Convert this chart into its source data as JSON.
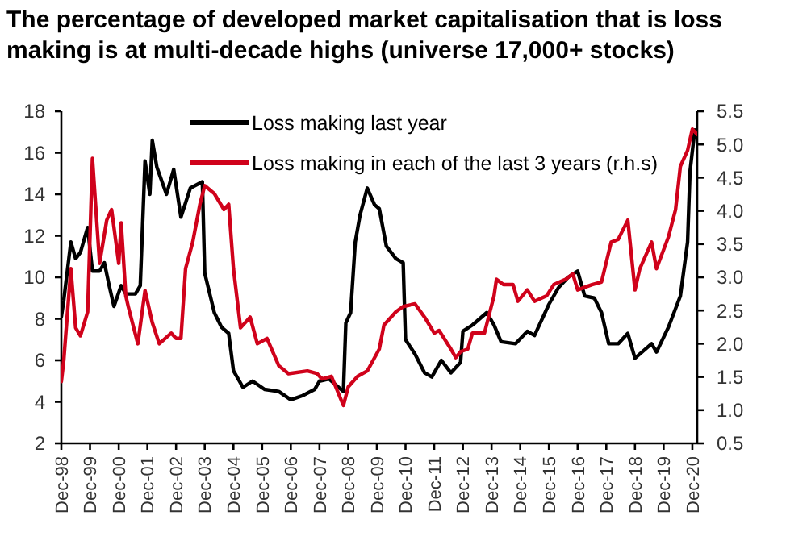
{
  "chart_data": {
    "type": "line",
    "title": "The percentage of developed market capitalisation that is loss making is at multi-decade highs (universe 17,000+ stocks)",
    "xlim": [
      "1998-12",
      "2021-02"
    ],
    "xticks": [
      {
        "value": "1998-12",
        "label": "Dec-98"
      },
      {
        "value": "1999-12",
        "label": "Dec-99"
      },
      {
        "value": "2000-12",
        "label": "Dec-00"
      },
      {
        "value": "2001-12",
        "label": "Dec-01"
      },
      {
        "value": "2002-12",
        "label": "Dec-02"
      },
      {
        "value": "2003-12",
        "label": "Dec-03"
      },
      {
        "value": "2004-12",
        "label": "Dec-04"
      },
      {
        "value": "2005-12",
        "label": "Dec-05"
      },
      {
        "value": "2006-12",
        "label": "Dec-06"
      },
      {
        "value": "2007-12",
        "label": "Dec-07"
      },
      {
        "value": "2008-12",
        "label": "Dec-08"
      },
      {
        "value": "2009-12",
        "label": "Dec-09"
      },
      {
        "value": "2010-12",
        "label": "Dec-10"
      },
      {
        "value": "2011-12",
        "label": "Dec-11"
      },
      {
        "value": "2012-12",
        "label": "Dec-12"
      },
      {
        "value": "2013-12",
        "label": "Dec-13"
      },
      {
        "value": "2014-12",
        "label": "Dec-14"
      },
      {
        "value": "2015-12",
        "label": "Dec-15"
      },
      {
        "value": "2016-12",
        "label": "Dec-16"
      },
      {
        "value": "2017-12",
        "label": "Dec-17"
      },
      {
        "value": "2018-12",
        "label": "Dec-18"
      },
      {
        "value": "2019-12",
        "label": "Dec-19"
      },
      {
        "value": "2020-12",
        "label": "Dec-20"
      }
    ],
    "ylim": [
      2,
      18
    ],
    "yticks": [
      2,
      4,
      6,
      8,
      10,
      12,
      14,
      16,
      18
    ],
    "y2lim": [
      0.5,
      5.5
    ],
    "y2ticks": [
      {
        "value": 0.5,
        "label": "0.5"
      },
      {
        "value": 1,
        "label": "1.0"
      },
      {
        "value": 1.5,
        "label": "1.5"
      },
      {
        "value": 2,
        "label": "2.0"
      },
      {
        "value": 2.5,
        "label": "2.5"
      },
      {
        "value": 3,
        "label": "3.0"
      },
      {
        "value": 3.5,
        "label": "3.5"
      },
      {
        "value": 4,
        "label": "4.0"
      },
      {
        "value": 4.5,
        "label": "4.5"
      },
      {
        "value": 5,
        "label": "5.0"
      },
      {
        "value": 5.5,
        "label": "5.5"
      }
    ],
    "legend": "top",
    "series": [
      {
        "name": "Loss making last year",
        "color": "#000000",
        "x": [
          "1998-12",
          "1999-01",
          "1999-04",
          "1999-06",
          "1999-08",
          "1999-11",
          "2000-01",
          "2000-04",
          "2000-06",
          "2000-08",
          "2000-10",
          "2001-01",
          "2001-03",
          "2001-07",
          "2001-09",
          "2001-11",
          "2002-01",
          "2002-02",
          "2002-04",
          "2002-08",
          "2002-11",
          "2003-02",
          "2003-06",
          "2003-11",
          "2003-12",
          "2004-04",
          "2004-07",
          "2004-10",
          "2004-12",
          "2005-04",
          "2005-08",
          "2006-01",
          "2006-07",
          "2006-12",
          "2007-05",
          "2007-10",
          "2007-12",
          "2008-04",
          "2008-10",
          "2008-11",
          "2009-01",
          "2009-03",
          "2009-05",
          "2009-08",
          "2009-11",
          "2010-01",
          "2010-04",
          "2010-08",
          "2010-11",
          "2010-12",
          "2011-04",
          "2011-08",
          "2011-11",
          "2012-03",
          "2012-07",
          "2012-11",
          "2012-12",
          "2013-04",
          "2013-10",
          "2014-01",
          "2014-04",
          "2014-10",
          "2015-03",
          "2015-06",
          "2015-12",
          "2016-04",
          "2016-08",
          "2016-12",
          "2017-03",
          "2017-07",
          "2017-10",
          "2018-01",
          "2018-05",
          "2018-09",
          "2018-12",
          "2019-07",
          "2019-09",
          "2020-02",
          "2020-07",
          "2020-10",
          "2020-11",
          "2021-01"
        ],
        "values": [
          8.1,
          8.9,
          11.7,
          10.9,
          11.2,
          12.4,
          10.3,
          10.3,
          10.7,
          9.6,
          8.6,
          9.6,
          9.2,
          9.2,
          9.6,
          15.6,
          14.0,
          16.6,
          15.3,
          14.0,
          15.2,
          12.9,
          14.3,
          14.6,
          10.2,
          8.3,
          7.6,
          7.3,
          5.5,
          4.7,
          5.0,
          4.6,
          4.5,
          4.1,
          4.3,
          4.6,
          5.0,
          5.1,
          4.5,
          7.8,
          8.3,
          11.7,
          13.0,
          14.3,
          13.5,
          13.3,
          11.5,
          10.9,
          10.7,
          7.0,
          6.3,
          5.4,
          5.2,
          6.0,
          5.4,
          5.9,
          7.4,
          7.7,
          8.3,
          7.7,
          6.9,
          6.8,
          7.4,
          7.2,
          8.7,
          9.5,
          10.0,
          10.3,
          9.1,
          9.0,
          8.3,
          6.8,
          6.8,
          7.3,
          6.1,
          6.8,
          6.4,
          7.6,
          9.1,
          11.7,
          15.1,
          17.1
        ]
      },
      {
        "name": "Loss making in each of the last 3 years (r.h.s)",
        "color": "#d0021b",
        "axis": "y2",
        "x": [
          "1998-12",
          "1999-01",
          "1999-04",
          "1999-06",
          "1999-08",
          "1999-11",
          "2000-01",
          "2000-04",
          "2000-07",
          "2000-09",
          "2000-12",
          "2001-01",
          "2001-03",
          "2001-04",
          "2001-08",
          "2001-11",
          "2002-02",
          "2002-05",
          "2002-10",
          "2002-12",
          "2003-02",
          "2003-04",
          "2003-07",
          "2003-10",
          "2003-12",
          "2004-04",
          "2004-08",
          "2004-10",
          "2004-12",
          "2005-03",
          "2005-07",
          "2005-10",
          "2006-02",
          "2006-07",
          "2006-11",
          "2007-07",
          "2007-11",
          "2008-01",
          "2008-05",
          "2008-10",
          "2008-12",
          "2009-04",
          "2009-08",
          "2010-01",
          "2010-03",
          "2010-08",
          "2010-11",
          "2011-04",
          "2011-08",
          "2011-12",
          "2012-02",
          "2012-07",
          "2012-09",
          "2012-11",
          "2013-02",
          "2013-04",
          "2013-09",
          "2014-01",
          "2014-02",
          "2014-05",
          "2014-09",
          "2014-11",
          "2015-03",
          "2015-06",
          "2015-11",
          "2016-02",
          "2016-07",
          "2016-10",
          "2016-12",
          "2017-06",
          "2017-10",
          "2018-02",
          "2018-05",
          "2018-09",
          "2018-12",
          "2019-02",
          "2019-07",
          "2019-09",
          "2020-02",
          "2020-05",
          "2020-07",
          "2020-10",
          "2020-12",
          "2021-02"
        ],
        "values": [
          1.43,
          1.75,
          3.13,
          2.24,
          2.12,
          2.48,
          4.79,
          3.21,
          3.86,
          4.02,
          3.21,
          3.82,
          2.72,
          2.56,
          2.0,
          2.8,
          2.32,
          2.0,
          2.16,
          2.08,
          2.08,
          3.13,
          3.53,
          4.1,
          4.38,
          4.26,
          4.02,
          4.1,
          3.13,
          2.24,
          2.4,
          2.0,
          2.08,
          1.67,
          1.55,
          1.59,
          1.55,
          1.47,
          1.51,
          1.07,
          1.35,
          1.51,
          1.59,
          1.92,
          2.28,
          2.48,
          2.56,
          2.6,
          2.4,
          2.16,
          2.2,
          1.92,
          1.79,
          1.88,
          1.92,
          2.16,
          2.16,
          2.72,
          2.97,
          2.89,
          2.89,
          2.64,
          2.81,
          2.64,
          2.72,
          2.89,
          2.97,
          3.05,
          2.81,
          2.89,
          2.93,
          3.53,
          3.57,
          3.86,
          2.81,
          3.13,
          3.53,
          3.13,
          3.61,
          4.02,
          4.67,
          4.91,
          5.23,
          5.15
        ]
      }
    ]
  }
}
